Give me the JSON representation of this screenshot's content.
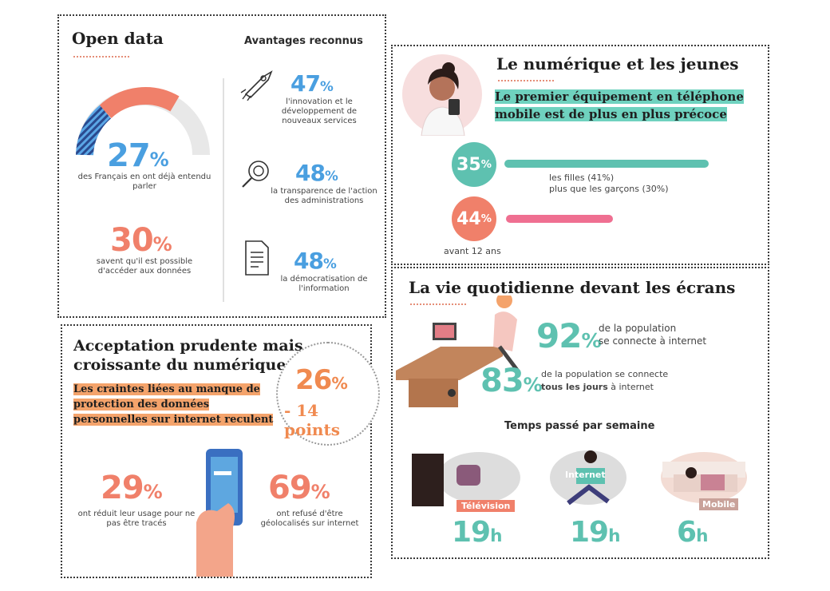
{
  "colors": {
    "blue": "#4a9fe0",
    "salmon": "#f0806a",
    "teal": "#5ec1b0",
    "navy": "#2a4a8f",
    "orange": "#f4a36b",
    "pink": "#ef6f91"
  },
  "open_data": {
    "title": "Open data",
    "gauge_value": 27,
    "stat1": {
      "value": "27",
      "unit": "%",
      "text": "des Français en ont déjà entendu parler"
    },
    "stat2": {
      "value": "30",
      "unit": "%",
      "text": "savent qu'il est possible d'accéder aux données"
    },
    "advantages_title": "Avantages reconnus",
    "adv": [
      {
        "icon": "rocket-icon",
        "value": "47",
        "unit": "%",
        "text": "l'innovation et le développement de nouveaux services"
      },
      {
        "icon": "magnifier-icon",
        "value": "48",
        "unit": "%",
        "text": "la transparence de l'action des administrations"
      },
      {
        "icon": "document-icon",
        "value": "48",
        "unit": "%",
        "text": "la démocratisation de l'information"
      }
    ]
  },
  "jeunes": {
    "title": "Le numérique et les jeunes",
    "subtitle": "Le premier équipement en téléphone mobile est de plus en plus précoce",
    "stat1": {
      "value": "35",
      "unit": "%",
      "text1": "les filles (41%)",
      "text2": "plus que les garçons (30%)"
    },
    "stat2": {
      "value": "44",
      "unit": "%",
      "text": "avant 12 ans"
    }
  },
  "quotidien": {
    "title": "La vie quotidienne devant les écrans",
    "stat1": {
      "value": "92",
      "unit": "%",
      "text1": "de la population",
      "text2": "se connecte à internet"
    },
    "stat2": {
      "value": "83",
      "unit": "%",
      "text1": "de la population se connecte",
      "text2b": "tous les jours",
      "text2c": " à internet"
    },
    "time_title": "Temps passé par semaine",
    "times": [
      {
        "label": "Télévision",
        "value": "19",
        "unit": "h"
      },
      {
        "label": "Internet",
        "value": "19",
        "unit": "h"
      },
      {
        "label": "Mobile",
        "value": "6",
        "unit": "h"
      }
    ]
  },
  "acceptation": {
    "title1": "Acceptation prudente mais",
    "title2": "croissante du numérique",
    "subtitle": "Les craintes liées au manque de protection des données personnelles sur internet reculent",
    "big1": {
      "value": "26",
      "unit": "%"
    },
    "big2": "- 14 points",
    "stat1": {
      "value": "29",
      "unit": "%",
      "text": "ont réduit leur usage pour ne pas être tracés"
    },
    "stat2": {
      "value": "69",
      "unit": "%",
      "text": "ont refusé d'être géolocalisés sur internet"
    }
  }
}
